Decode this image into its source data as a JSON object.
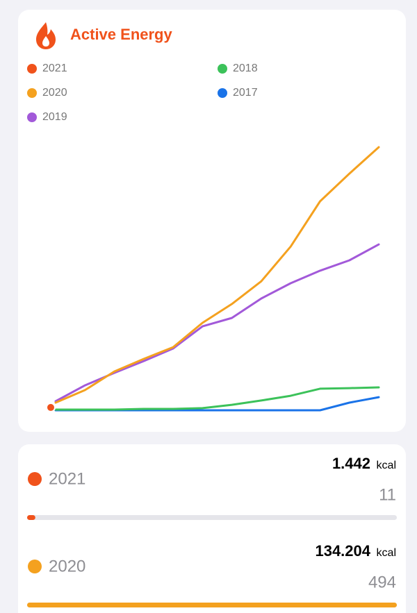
{
  "chart_data": {
    "type": "line",
    "title": "Active Energy",
    "series": [
      {
        "name": "2021",
        "color": "#f0521b",
        "values": [
          1442
        ]
      },
      {
        "name": "2020",
        "color": "#f4a11f",
        "values": [
          3900,
          10300,
          19800,
          26200,
          32200,
          44600,
          54200,
          65800,
          83500,
          106600,
          120700,
          134204
        ]
      },
      {
        "name": "2019",
        "color": "#a259d9",
        "values": [
          4600,
          12700,
          19100,
          25100,
          31500,
          42800,
          47100,
          57000,
          64800,
          71200,
          76500,
          84600
        ]
      },
      {
        "name": "2018",
        "color": "#3cc25a",
        "values": [
          350,
          350,
          350,
          700,
          700,
          1100,
          2800,
          5000,
          7400,
          11000,
          11300,
          11700
        ]
      },
      {
        "name": "2017",
        "color": "#1a73e8",
        "values": [
          0,
          0,
          0,
          0,
          0,
          0,
          0,
          0,
          0,
          0,
          3900,
          6700
        ]
      }
    ]
  },
  "summary": {
    "items": [
      {
        "year": "2021",
        "color": "#f0521b",
        "energy": "1.442",
        "unit": "kcal",
        "count": 11
      },
      {
        "year": "2020",
        "color": "#f4a11f",
        "energy": "134.204",
        "unit": "kcal",
        "count": 494
      }
    ]
  }
}
